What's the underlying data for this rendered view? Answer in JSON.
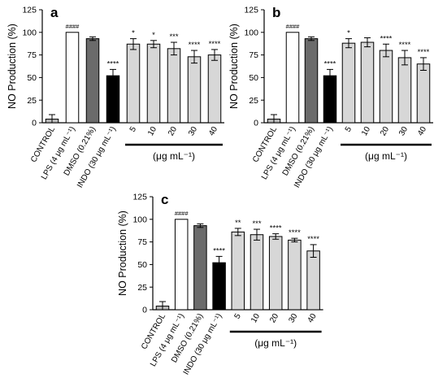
{
  "chart_data": [
    {
      "type": "bar",
      "panel": "a",
      "ylabel": "NO Production (%)",
      "ylim": [
        0,
        125
      ],
      "yticks": [
        0,
        25,
        50,
        75,
        100,
        125
      ],
      "categories": [
        "CONTROL",
        "LPS (4 μg mL⁻¹)",
        "DMSO (0.21%)",
        "INDO (30 μg mL⁻¹)",
        "5",
        "10",
        "20",
        "30",
        "40"
      ],
      "values": [
        4,
        100,
        93,
        52,
        87,
        87,
        82,
        73,
        75
      ],
      "errors": [
        5,
        0,
        2,
        7,
        6,
        4,
        7,
        7,
        6
      ],
      "significance": [
        "",
        "####",
        "",
        "****",
        "*",
        "*",
        "***",
        "****",
        "****"
      ],
      "bar_colors": [
        "#b7b7b7",
        "#ffffff",
        "#6b6b6b",
        "#000000",
        "#d7d7d7",
        "#d7d7d7",
        "#d7d7d7",
        "#d7d7d7",
        "#d7d7d7"
      ],
      "group_label": "(μg mL⁻¹)"
    },
    {
      "type": "bar",
      "panel": "b",
      "ylabel": "NO Production (%)",
      "ylim": [
        0,
        125
      ],
      "yticks": [
        0,
        25,
        50,
        75,
        100,
        125
      ],
      "categories": [
        "CONTROL",
        "LPS (4 μg mL⁻¹)",
        "DMSO (0.21%)",
        "INDO (30 μg mL⁻¹)",
        "5",
        "10",
        "20",
        "30",
        "40"
      ],
      "values": [
        4,
        100,
        93,
        52,
        88,
        89,
        80,
        72,
        65
      ],
      "errors": [
        5,
        0,
        2,
        7,
        5,
        5,
        7,
        8,
        7
      ],
      "significance": [
        "",
        "####",
        "",
        "****",
        "*",
        "",
        "****",
        "****",
        "****"
      ],
      "bar_colors": [
        "#b7b7b7",
        "#ffffff",
        "#6b6b6b",
        "#000000",
        "#d7d7d7",
        "#d7d7d7",
        "#d7d7d7",
        "#d7d7d7",
        "#d7d7d7"
      ],
      "group_label": "(μg mL⁻¹)"
    },
    {
      "type": "bar",
      "panel": "c",
      "ylabel": "NO Production (%)",
      "ylim": [
        0,
        125
      ],
      "yticks": [
        0,
        25,
        50,
        75,
        100,
        125
      ],
      "categories": [
        "CONTROL",
        "LPS (4 μg mL⁻¹)",
        "DMSO (0.21%)",
        "INDO (30 μg mL⁻¹)",
        "5",
        "10",
        "20",
        "30",
        "40"
      ],
      "values": [
        4,
        100,
        93,
        52,
        86,
        83,
        81,
        77,
        65
      ],
      "errors": [
        5,
        0,
        2,
        7,
        4,
        6,
        3,
        2,
        7
      ],
      "significance": [
        "",
        "####",
        "",
        "****",
        "**",
        "***",
        "****",
        "****",
        "****"
      ],
      "bar_colors": [
        "#b7b7b7",
        "#ffffff",
        "#6b6b6b",
        "#000000",
        "#d7d7d7",
        "#d7d7d7",
        "#d7d7d7",
        "#d7d7d7",
        "#d7d7d7"
      ],
      "group_label": "(μg mL⁻¹)"
    }
  ]
}
